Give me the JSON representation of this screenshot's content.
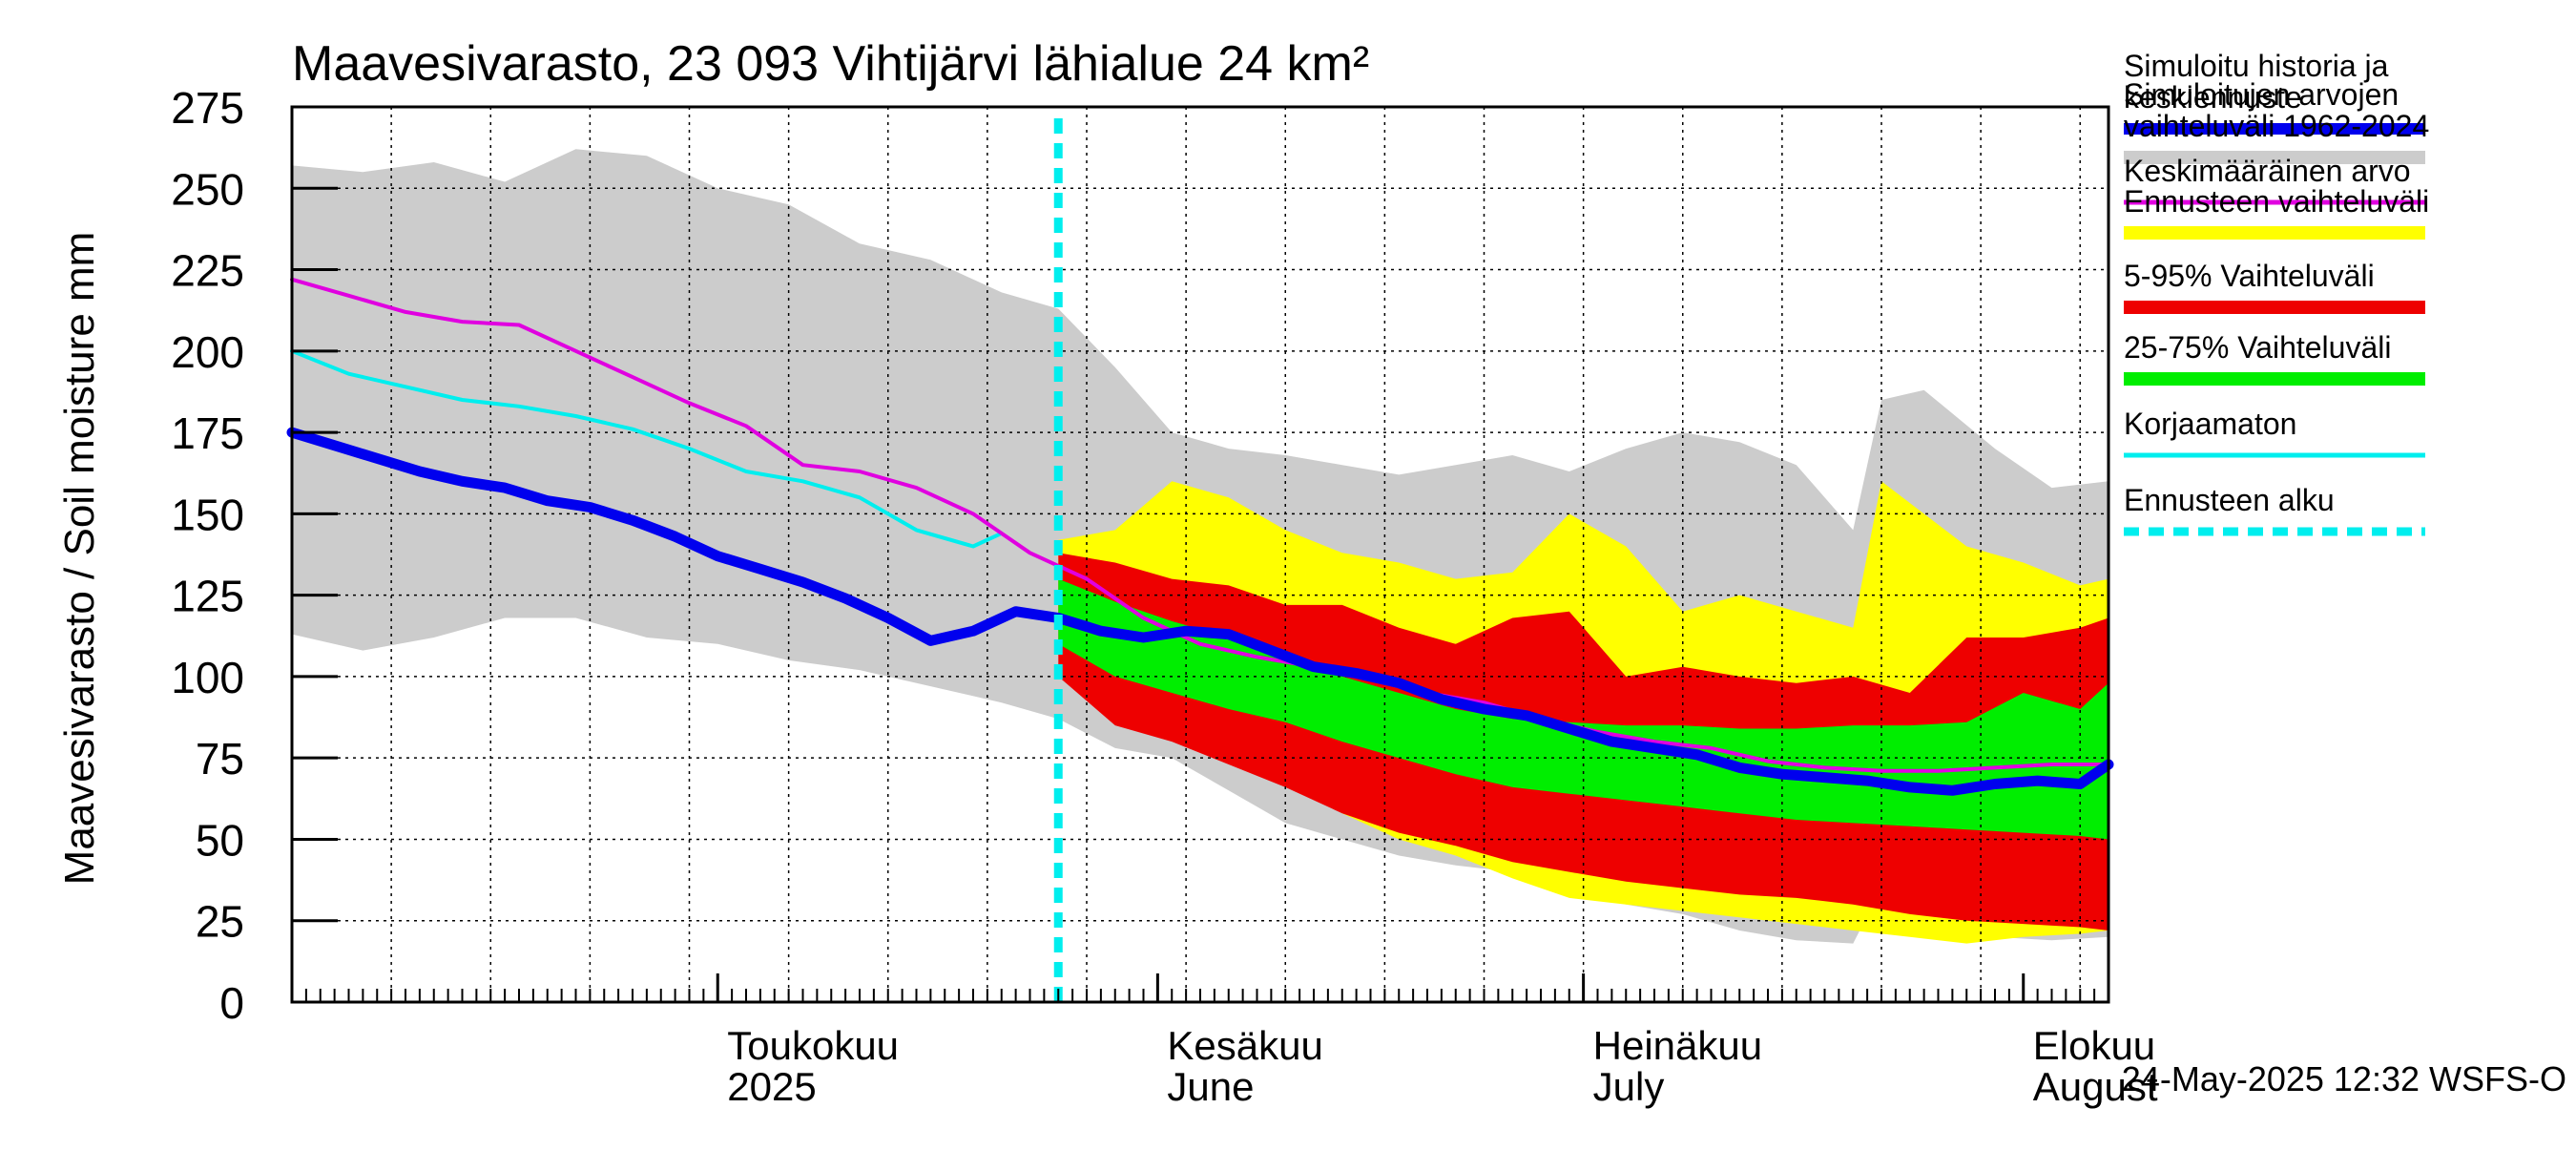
{
  "chart_data": {
    "type": "area",
    "title": "Maavesivarasto, 23 093 Vihtijärvi lähialue 24 km²",
    "ylabel": "Maavesivarasto / Soil moisture   mm",
    "xlabel": "",
    "ylim": [
      0,
      275
    ],
    "yticks": [
      0,
      25,
      50,
      75,
      100,
      125,
      150,
      175,
      200,
      225,
      250,
      275
    ],
    "xlim_days": [
      0,
      128
    ],
    "x_unit": "days since 2025-04-01",
    "forecast_start_day": 54,
    "month_labels": [
      {
        "day": 30,
        "line1": "Toukokuu",
        "line2": "2025"
      },
      {
        "day": 61,
        "line1": "Kesäkuu",
        "line2": "June"
      },
      {
        "day": 91,
        "line1": "Heinäkuu",
        "line2": "July"
      },
      {
        "day": 122,
        "line1": "Elokuu",
        "line2": "August"
      }
    ],
    "month_boundaries": [
      30,
      61,
      91,
      122
    ],
    "timestamp": "24-May-2025 12:32 WSFS-O",
    "legend": [
      {
        "key": "sim_history",
        "label_lines": [
          "Simuloitu historia ja",
          "keskiennuste"
        ],
        "color": "#0000ee",
        "style": "thick"
      },
      {
        "key": "sim_range",
        "label_lines": [
          "Simuloitujen arvojen",
          "vaihteluväli 1962-2024"
        ],
        "color": "#cccccc",
        "style": "band"
      },
      {
        "key": "mean",
        "label_lines": [
          "Keskimääräinen arvo"
        ],
        "color": "#e000e0",
        "style": "line"
      },
      {
        "key": "forecast_range",
        "label_lines": [
          "Ennusteen vaihteluväli"
        ],
        "color": "#ffff00",
        "style": "band"
      },
      {
        "key": "p5_95",
        "label_lines": [
          "5-95% Vaihteluväli"
        ],
        "color": "#ee0000",
        "style": "band"
      },
      {
        "key": "p25_75",
        "label_lines": [
          "25-75% Vaihteluväli"
        ],
        "color": "#00ee00",
        "style": "band"
      },
      {
        "key": "uncorrected",
        "label_lines": [
          "Korjaamaton"
        ],
        "color": "#00eeee",
        "style": "line"
      },
      {
        "key": "forecast_start",
        "label_lines": [
          "Ennusteen alku"
        ],
        "color": "#00eeee",
        "style": "dashed"
      }
    ],
    "series": {
      "sim_range_upper": {
        "x": [
          0,
          5,
          10,
          15,
          20,
          25,
          30,
          35,
          40,
          45,
          50,
          54,
          58,
          62,
          66,
          70,
          74,
          78,
          82,
          86,
          90,
          94,
          98,
          102,
          106,
          110,
          112,
          115,
          120,
          124,
          128
        ],
        "y": [
          257,
          255,
          258,
          252,
          262,
          260,
          250,
          245,
          233,
          228,
          218,
          213,
          195,
          175,
          170,
          168,
          165,
          162,
          165,
          168,
          163,
          170,
          175,
          172,
          165,
          145,
          185,
          188,
          170,
          158,
          160
        ]
      },
      "sim_range_lower": {
        "x": [
          0,
          5,
          10,
          15,
          20,
          25,
          30,
          35,
          40,
          45,
          50,
          54,
          58,
          62,
          66,
          70,
          74,
          78,
          82,
          86,
          90,
          94,
          98,
          102,
          106,
          110,
          112,
          115,
          120,
          124,
          128
        ],
        "y": [
          113,
          108,
          112,
          118,
          118,
          112,
          110,
          105,
          102,
          97,
          92,
          87,
          78,
          75,
          65,
          55,
          50,
          45,
          42,
          40,
          35,
          30,
          27,
          22,
          19,
          18,
          35,
          25,
          20,
          19,
          20
        ]
      },
      "forecast_range_upper": {
        "x": [
          54,
          58,
          62,
          66,
          70,
          74,
          78,
          82,
          86,
          90,
          94,
          98,
          102,
          106,
          110,
          112,
          115,
          118,
          122,
          126,
          128
        ],
        "y": [
          142,
          145,
          160,
          155,
          145,
          138,
          135,
          130,
          132,
          150,
          140,
          120,
          125,
          120,
          115,
          160,
          150,
          140,
          135,
          128,
          130
        ]
      },
      "forecast_range_lower": {
        "x": [
          54,
          58,
          62,
          66,
          70,
          74,
          78,
          82,
          86,
          90,
          94,
          98,
          102,
          106,
          110,
          114,
          118,
          122,
          126,
          128
        ],
        "y": [
          118,
          90,
          82,
          78,
          68,
          58,
          50,
          45,
          38,
          32,
          30,
          28,
          26,
          24,
          22,
          20,
          18,
          20,
          21,
          22
        ]
      },
      "p5_95_upper": {
        "x": [
          54,
          58,
          62,
          66,
          70,
          74,
          78,
          82,
          86,
          90,
          94,
          98,
          102,
          106,
          110,
          114,
          118,
          122,
          126,
          128
        ],
        "y": [
          138,
          135,
          130,
          128,
          122,
          122,
          115,
          110,
          118,
          120,
          100,
          103,
          100,
          98,
          100,
          95,
          112,
          112,
          115,
          118
        ]
      },
      "p5_95_lower": {
        "x": [
          54,
          58,
          62,
          66,
          70,
          74,
          78,
          82,
          86,
          90,
          94,
          98,
          102,
          106,
          110,
          114,
          118,
          122,
          126,
          128
        ],
        "y": [
          100,
          85,
          80,
          73,
          66,
          58,
          52,
          48,
          43,
          40,
          37,
          35,
          33,
          32,
          30,
          27,
          25,
          24,
          23,
          22
        ]
      },
      "p25_75_upper": {
        "x": [
          54,
          58,
          62,
          66,
          70,
          74,
          78,
          82,
          86,
          90,
          94,
          98,
          102,
          106,
          110,
          114,
          118,
          122,
          126,
          128
        ],
        "y": [
          130,
          123,
          117,
          112,
          108,
          100,
          95,
          90,
          87,
          86,
          85,
          85,
          84,
          84,
          85,
          85,
          86,
          95,
          90,
          98
        ]
      },
      "p25_75_lower": {
        "x": [
          54,
          58,
          62,
          66,
          70,
          74,
          78,
          82,
          86,
          90,
          94,
          98,
          102,
          106,
          110,
          114,
          118,
          122,
          126,
          128
        ],
        "y": [
          110,
          100,
          95,
          90,
          86,
          80,
          75,
          70,
          66,
          64,
          62,
          60,
          58,
          56,
          55,
          54,
          53,
          52,
          51,
          50
        ]
      },
      "mean": {
        "x": [
          0,
          4,
          8,
          12,
          16,
          20,
          24,
          28,
          32,
          36,
          40,
          44,
          48,
          52,
          56,
          60,
          64,
          68,
          72,
          76,
          80,
          84,
          88,
          92,
          96,
          100,
          104,
          108,
          112,
          116,
          120,
          124,
          128
        ],
        "y": [
          222,
          217,
          212,
          209,
          208,
          200,
          192,
          184,
          177,
          165,
          163,
          158,
          150,
          138,
          130,
          118,
          110,
          106,
          103,
          99,
          95,
          92,
          87,
          83,
          80,
          78,
          74,
          72,
          71,
          71,
          72,
          73,
          73
        ]
      },
      "uncorrected": {
        "x": [
          0,
          4,
          8,
          12,
          16,
          20,
          24,
          28,
          32,
          36,
          40,
          44,
          48,
          50
        ],
        "y": [
          200,
          193,
          189,
          185,
          183,
          180,
          176,
          170,
          163,
          160,
          155,
          145,
          140,
          144
        ]
      },
      "sim_history": {
        "x": [
          0,
          3,
          6,
          9,
          12,
          15,
          18,
          21,
          24,
          27,
          30,
          33,
          36,
          39,
          42,
          45,
          48,
          51,
          54,
          57,
          60,
          63,
          66,
          69,
          72,
          75,
          78,
          81,
          84,
          87,
          90,
          93,
          96,
          99,
          102,
          105,
          108,
          111,
          114,
          117,
          120,
          123,
          126,
          128
        ],
        "y": [
          175,
          171,
          167,
          163,
          160,
          158,
          154,
          152,
          148,
          143,
          137,
          133,
          129,
          124,
          118,
          111,
          114,
          120,
          118,
          114,
          112,
          114,
          113,
          108,
          103,
          101,
          98,
          93,
          90,
          88,
          84,
          80,
          78,
          76,
          72,
          70,
          69,
          68,
          66,
          65,
          67,
          68,
          67,
          73
        ]
      }
    }
  }
}
